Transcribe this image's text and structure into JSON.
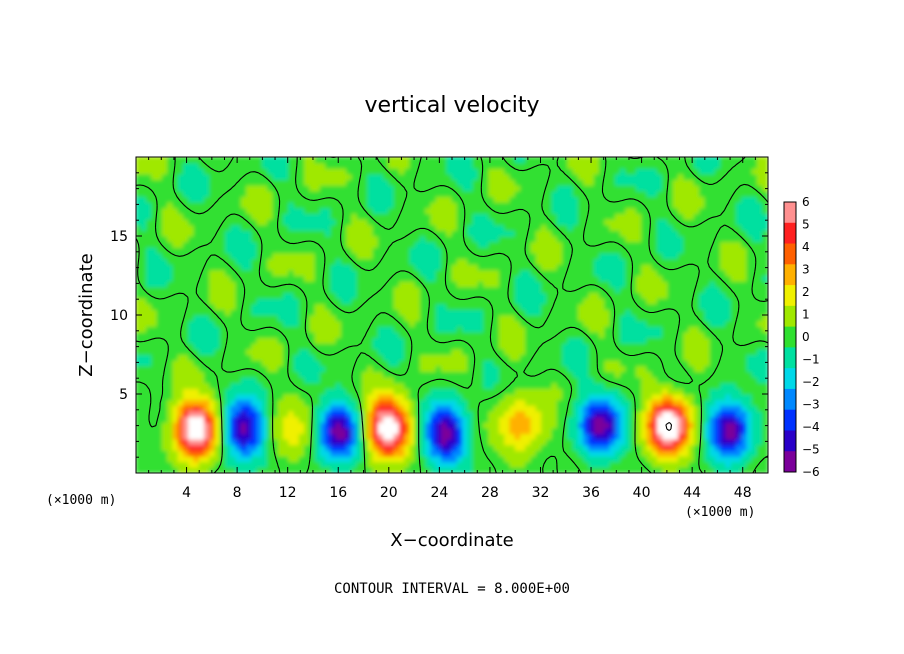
{
  "chart_data": {
    "type": "heatmap",
    "title": "vertical velocity",
    "xlabel": "X−coordinate",
    "ylabel": "Z−coordinate",
    "x_unit_label": "(×1000 m)",
    "y_unit_label": "(×1000 m)",
    "footer": "CONTOUR INTERVAL = 8.000E+00",
    "xlim": [
      0,
      50
    ],
    "ylim": [
      0,
      20
    ],
    "x_ticks": [
      4,
      8,
      12,
      16,
      20,
      24,
      28,
      32,
      36,
      40,
      44,
      48
    ],
    "y_ticks": [
      5,
      10,
      15
    ],
    "colorbar": {
      "ticks": [
        "6",
        "5",
        "4",
        "3",
        "2",
        "1",
        "0",
        "−1",
        "−2",
        "−3",
        "−4",
        "−5",
        "−6"
      ],
      "levels": [
        -6,
        -5,
        -4,
        -3,
        -2,
        -1,
        0,
        1,
        2,
        3,
        4,
        5,
        6
      ],
      "colors": [
        "#7b009a",
        "#2a00c8",
        "#0032ff",
        "#0088ff",
        "#00d8e8",
        "#00e0a0",
        "#30e030",
        "#a0e800",
        "#f0f000",
        "#ffb000",
        "#ff6000",
        "#ff2020",
        "#ff9090"
      ]
    },
    "features": [
      {
        "kind": "updraft",
        "x": 4.8,
        "z": 2.8,
        "peak": 8
      },
      {
        "kind": "downdraft",
        "x": 8.5,
        "z": 2.8,
        "peak": -6
      },
      {
        "kind": "updraft",
        "x": 12.5,
        "z": 2.6,
        "peak": 2
      },
      {
        "kind": "downdraft",
        "x": 16.0,
        "z": 2.6,
        "peak": -6
      },
      {
        "kind": "updraft",
        "x": 20.0,
        "z": 2.9,
        "peak": 8
      },
      {
        "kind": "downdraft",
        "x": 24.5,
        "z": 2.5,
        "peak": -6
      },
      {
        "kind": "updraft",
        "x": 30.5,
        "z": 3.0,
        "peak": 3
      },
      {
        "kind": "downdraft",
        "x": 36.8,
        "z": 3.0,
        "peak": -6
      },
      {
        "kind": "updraft",
        "x": 42.2,
        "z": 3.0,
        "peak": 8
      },
      {
        "kind": "downdraft",
        "x": 47.0,
        "z": 2.8,
        "peak": -6
      }
    ]
  }
}
